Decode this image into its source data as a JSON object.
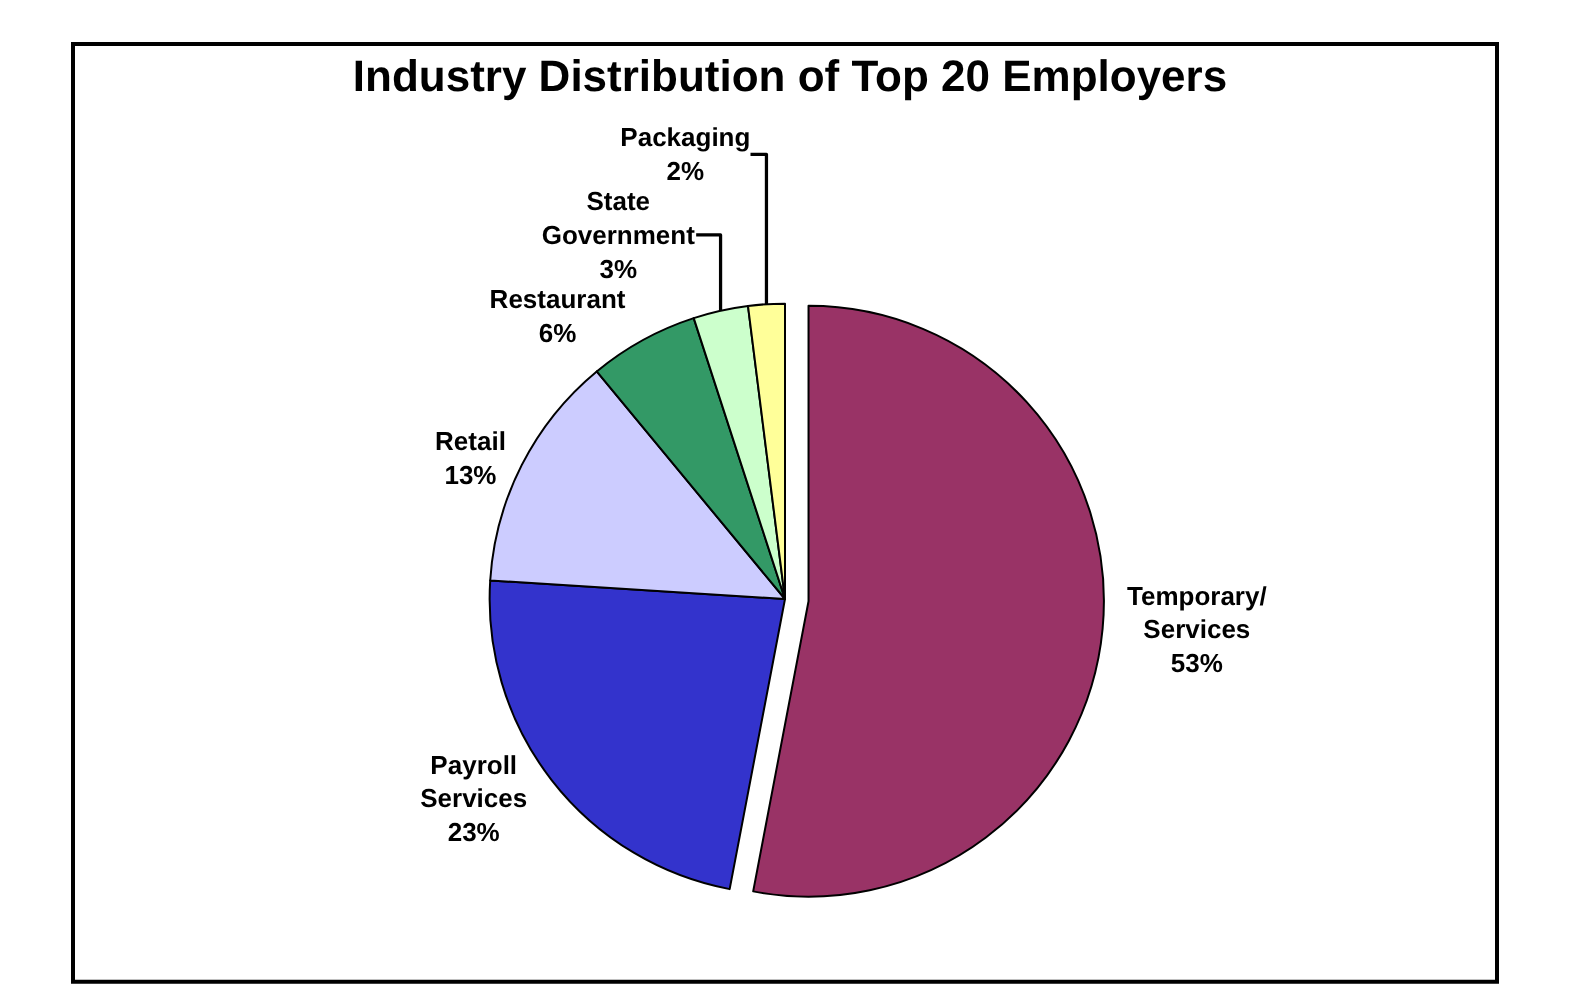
{
  "chart_data": {
    "type": "pie",
    "title": "Industry Distribution of Top 20 Employers",
    "categories": [
      "Temporary/ Services",
      "Payroll Services",
      "Retail",
      "Restaurant",
      "State Government",
      "Packaging"
    ],
    "values": [
      53,
      23,
      13,
      6,
      3,
      2
    ],
    "value_labels": [
      "53%",
      "23%",
      "13%",
      "6%",
      "3%",
      "2%"
    ],
    "colors": [
      "#993366",
      "#3333cc",
      "#ccccff",
      "#339966",
      "#ccffcc",
      "#ffff99"
    ],
    "legend": false
  }
}
